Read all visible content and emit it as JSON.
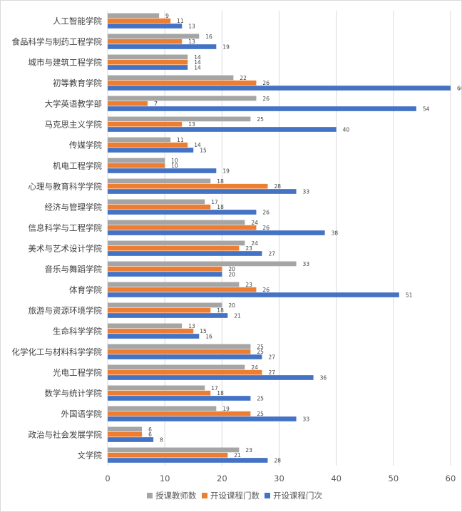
{
  "chart_data": {
    "type": "bar",
    "orientation": "horizontal",
    "categories": [
      "人工智能学院",
      "食品科学与制药工程学院",
      "城市与建筑工程学院",
      "初等教育学院",
      "大学英语教学部",
      "马克思主义学院",
      "传媒学院",
      "机电工程学院",
      "心理与教育科学学院",
      "经济与管理学院",
      "信息科学与工程学院",
      "美术与艺术设计学院",
      "音乐与舞蹈学院",
      "体育学院",
      "旅游与资源环境学院",
      "生命科学学院",
      "化学化工与材料科学学院",
      "光电工程学院",
      "数学与统计学院",
      "外国语学院",
      "政治与社会发展学院",
      "文学院"
    ],
    "series": [
      {
        "name": "授课教师数",
        "color": "#a5a5a5",
        "values": [
          9,
          16,
          14,
          22,
          26,
          25,
          11,
          10,
          18,
          17,
          24,
          24,
          33,
          23,
          20,
          13,
          25,
          24,
          17,
          19,
          6,
          23
        ]
      },
      {
        "name": "开设课程门数",
        "color": "#ed7d31",
        "values": [
          11,
          13,
          14,
          26,
          7,
          13,
          14,
          10,
          28,
          18,
          26,
          23,
          20,
          26,
          18,
          15,
          25,
          27,
          18,
          25,
          6,
          21
        ]
      },
      {
        "name": "开设课程门次",
        "color": "#4472c4",
        "values": [
          13,
          19,
          14,
          60,
          54,
          40,
          15,
          19,
          33,
          26,
          38,
          27,
          20,
          51,
          21,
          16,
          27,
          36,
          25,
          33,
          8,
          28
        ]
      }
    ],
    "xlim": [
      0,
      60
    ],
    "xticks": [
      0,
      10,
      20,
      30,
      40,
      50,
      60
    ],
    "grid": true,
    "legend": "bottom",
    "title": "",
    "xlabel": "",
    "ylabel": ""
  }
}
